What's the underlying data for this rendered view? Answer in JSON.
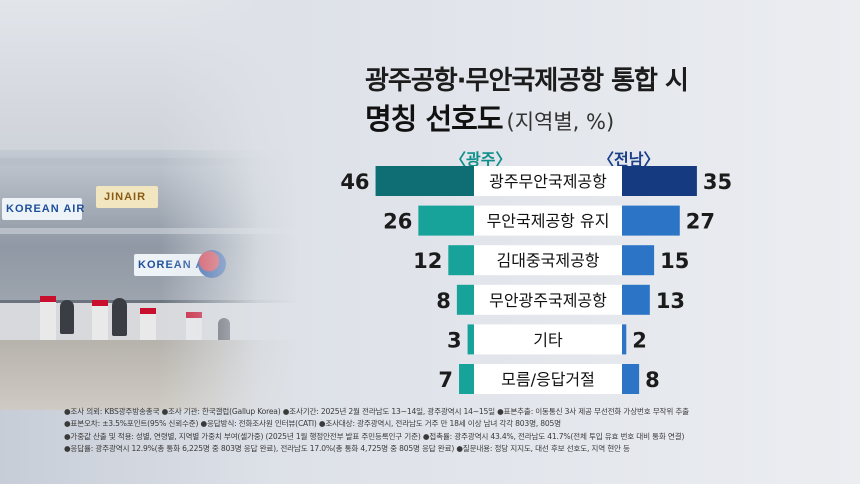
{
  "title": {
    "line1": "광주공항·무안국제공항 통합 시",
    "line2": "명칭 선호도",
    "paren": "(지역별, %)"
  },
  "regions": {
    "left": "〈광주〉",
    "right": "〈전남〉"
  },
  "colors": {
    "left_top": "#0e6e74",
    "left": "#17a39a",
    "right_top": "#163a80",
    "right": "#2b74c6",
    "label_bg": "#ffffff"
  },
  "chart_data": {
    "type": "bar",
    "orientation": "horizontal-butterfly",
    "categories": [
      "광주무안국제공항",
      "무안국제공항 유지",
      "김대중국제공항",
      "무안광주국제공항",
      "기타",
      "모름/응답거절"
    ],
    "series": [
      {
        "name": "〈광주〉",
        "values": [
          46,
          26,
          12,
          8,
          3,
          7
        ]
      },
      {
        "name": "〈전남〉",
        "values": [
          35,
          27,
          15,
          13,
          2,
          8
        ]
      }
    ],
    "value_labels": {
      "left": [
        "46",
        "26",
        "12",
        "8",
        "3",
        "7"
      ],
      "right": [
        "35",
        "27",
        "15",
        "13",
        "2",
        "8"
      ]
    }
  },
  "photo_signs": {
    "korean_air": "KOREAN AIR",
    "jinair": "JINAIR"
  },
  "notes": [
    "●조사 의뢰: KBS광주방송총국   ●조사 기관: 한국갤럽(Gallup Korea)   ●조사기간: 2025년 2월 전라남도 13~14일, 광주광역시 14~15일   ●표본추출: 이동통신 3사 제공 무선전화 가상번호 무작위 추출",
    "●표본오차: ±3.5%포인트(95% 신뢰수준)   ●응답방식: 전화조사원 인터뷰(CATI)   ●조사대상: 광주광역시, 전라남도 거주 만 18세 이상 남녀 각각 803명, 805명",
    "●가중값 산출 및 적용: 성별, 연령별, 지역별 가중치 부여(셀가중) (2025년 1월 행정안전부 발표 주민등록인구 기준)   ●접촉률: 광주광역시 43.4%, 전라남도 41.7%(전체 투입 유효 번호 대비 통화 연결)",
    "●응답률: 광주광역시 12.9%(총 통화 6,225명 중 803명 응답 완료), 전라남도 17.0%(총 통화 4,725명 중 805명 응답 완료)   ●질문내용: 정당 지지도, 대선 후보 선호도, 지역 현안 등"
  ]
}
